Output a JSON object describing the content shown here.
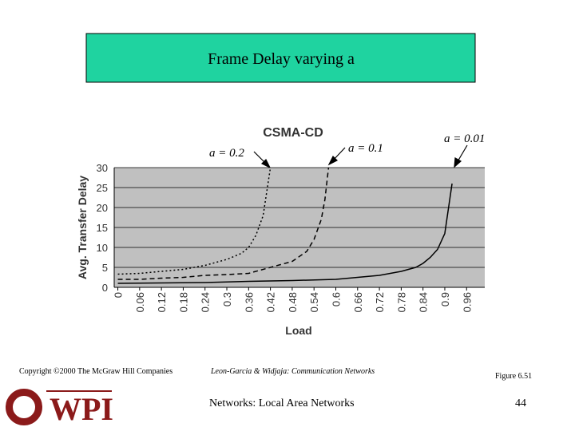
{
  "slide": {
    "title": "Frame Delay varying a",
    "copyright": "Copyright ©2000 The McGraw Hill Companies",
    "book": "Leon-Garcia & Widjaja:  Communication Networks",
    "figure": "Figure 6.51",
    "footer": "Networks: Local Area Networks",
    "page_number": "44",
    "logo": "WPI"
  },
  "chart_data": {
    "type": "line",
    "title": "CSMA-CD",
    "x_label": "Load",
    "y_label": "Avg. Transfer Delay",
    "xlim": [
      -0.01,
      1.01
    ],
    "ylim": [
      0,
      30
    ],
    "xticks": [
      0,
      0.06,
      0.12,
      0.18,
      0.24,
      0.3,
      0.36,
      0.42,
      0.48,
      0.54,
      0.6,
      0.66,
      0.72,
      0.78,
      0.84,
      0.9,
      0.96
    ],
    "yticks": [
      0,
      5,
      10,
      15,
      20,
      25,
      30
    ],
    "grid": true,
    "background": "#c0c0c0",
    "series": [
      {
        "name": "a = 0.2",
        "color": "#000000",
        "dash": "dotted",
        "x": [
          0,
          0.06,
          0.12,
          0.18,
          0.24,
          0.3,
          0.34,
          0.36,
          0.38,
          0.4,
          0.41,
          0.42
        ],
        "values": [
          3.3,
          3.5,
          4,
          4.5,
          5.5,
          7,
          8.5,
          10,
          13,
          18,
          24,
          30
        ]
      },
      {
        "name": "a = 0.1",
        "color": "#000000",
        "dash": "dashed",
        "x": [
          0,
          0.06,
          0.12,
          0.18,
          0.24,
          0.3,
          0.36,
          0.42,
          0.48,
          0.52,
          0.54,
          0.56,
          0.57,
          0.58
        ],
        "values": [
          2,
          2,
          2.3,
          2.5,
          3,
          3.2,
          3.5,
          5,
          6.5,
          9,
          12,
          17,
          22,
          30
        ]
      },
      {
        "name": "a = 0.01",
        "color": "#000000",
        "dash": "solid",
        "x": [
          0,
          0.12,
          0.24,
          0.36,
          0.48,
          0.6,
          0.66,
          0.72,
          0.78,
          0.82,
          0.84,
          0.86,
          0.88,
          0.9,
          0.92
        ],
        "values": [
          1,
          1.1,
          1.2,
          1.5,
          1.7,
          2,
          2.5,
          3,
          4,
          5,
          6,
          7.5,
          9.5,
          13.5,
          26
        ]
      }
    ]
  }
}
